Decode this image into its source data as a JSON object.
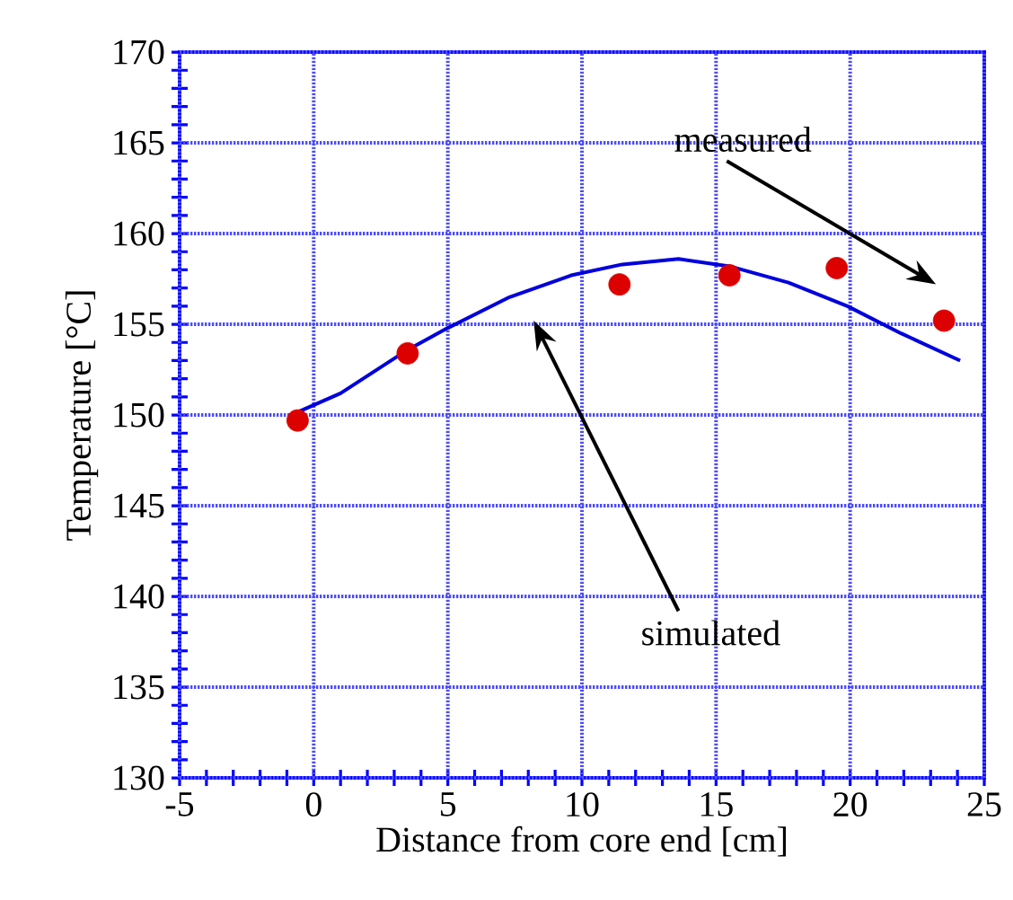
{
  "chart_data": {
    "type": "scatter",
    "xlabel": "Distance from core end [cm]",
    "ylabel": "Temperature [°C]",
    "xlim": [
      -5,
      25
    ],
    "xticks": [
      -5,
      {
        "value": -4,
        "label": null
      },
      {
        "value": -3,
        "label": null
      },
      {
        "value": -2,
        "label": null
      },
      {
        "value": -1,
        "label": null
      },
      0,
      {
        "value": 1,
        "label": null
      },
      {
        "value": 2,
        "label": null
      },
      {
        "value": 3,
        "label": null
      },
      {
        "value": 4,
        "label": null
      },
      5,
      {
        "value": 6,
        "label": null
      },
      {
        "value": 7,
        "label": null
      },
      {
        "value": 8,
        "label": null
      },
      {
        "value": 9,
        "label": null
      },
      10,
      {
        "value": 11,
        "label": null
      },
      {
        "value": 12,
        "label": null
      },
      {
        "value": 13,
        "label": null
      },
      {
        "value": 14,
        "label": null
      },
      15,
      {
        "value": 16,
        "label": null
      },
      {
        "value": 17,
        "label": null
      },
      {
        "value": 18,
        "label": null
      },
      {
        "value": 19,
        "label": null
      },
      20,
      {
        "value": 21,
        "label": null
      },
      {
        "value": 22,
        "label": null
      },
      {
        "value": 23,
        "label": null
      },
      {
        "value": 24,
        "label": null
      },
      25
    ],
    "ylim": [
      130,
      170
    ],
    "yticks": [
      130,
      {
        "value": 131,
        "label": null
      },
      {
        "value": 132,
        "label": null
      },
      {
        "value": 133,
        "label": null
      },
      {
        "value": 134,
        "label": null
      },
      135,
      {
        "value": 136,
        "label": null
      },
      {
        "value": 137,
        "label": null
      },
      {
        "value": 138,
        "label": null
      },
      {
        "value": 139,
        "label": null
      },
      140,
      {
        "value": 141,
        "label": null
      },
      {
        "value": 142,
        "label": null
      },
      {
        "value": 143,
        "label": null
      },
      {
        "value": 144,
        "label": null
      },
      145,
      {
        "value": 146,
        "label": null
      },
      {
        "value": 147,
        "label": null
      },
      {
        "value": 148,
        "label": null
      },
      {
        "value": 149,
        "label": null
      },
      150,
      {
        "value": 151,
        "label": null
      },
      {
        "value": 152,
        "label": null
      },
      {
        "value": 153,
        "label": null
      },
      {
        "value": 154,
        "label": null
      },
      155,
      {
        "value": 156,
        "label": null
      },
      {
        "value": 157,
        "label": null
      },
      {
        "value": 158,
        "label": null
      },
      {
        "value": 159,
        "label": null
      },
      160,
      {
        "value": 161,
        "label": null
      },
      {
        "value": 162,
        "label": null
      },
      {
        "value": 163,
        "label": null
      },
      {
        "value": 164,
        "label": null
      },
      165,
      {
        "value": 166,
        "label": null
      },
      {
        "value": 167,
        "label": null
      },
      {
        "value": 168,
        "label": null
      },
      {
        "value": 169,
        "label": null
      },
      170
    ],
    "grid": true,
    "series": [
      {
        "type": "line",
        "color": "#0000dd",
        "line_style": "solid",
        "x": [
          -0.7,
          1.0,
          3.4,
          5.0,
          7.3,
          9.6,
          11.5,
          13.6,
          15.5,
          17.7,
          19.9,
          21.9,
          24.1
        ],
        "values": [
          150.1,
          151.2,
          153.5,
          154.8,
          156.5,
          157.7,
          158.3,
          158.6,
          158.2,
          157.3,
          156.0,
          154.5,
          153.0
        ]
      },
      {
        "color": "#dd0000",
        "marker": "circle",
        "x": [
          -0.6,
          3.5,
          11.4,
          15.5,
          19.5,
          23.5
        ],
        "values": [
          149.7,
          153.4,
          157.2,
          157.7,
          158.1,
          155.2
        ]
      }
    ],
    "annotations": [
      "measured",
      "simulated"
    ]
  }
}
